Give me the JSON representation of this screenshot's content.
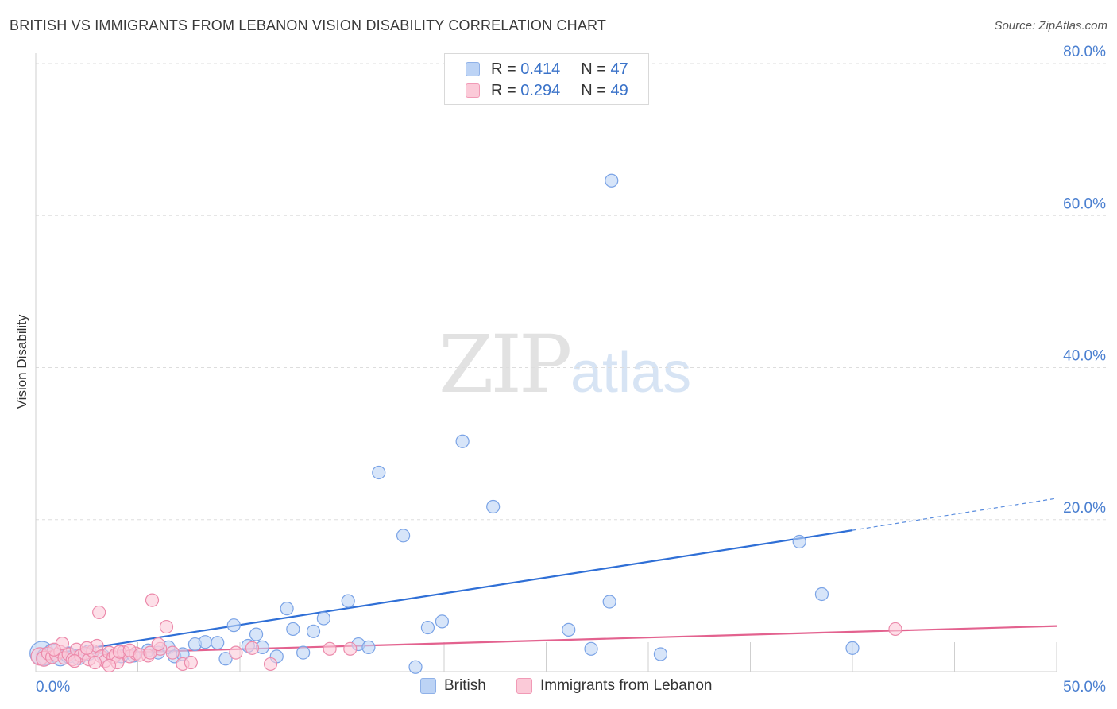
{
  "header": {
    "title": "BRITISH VS IMMIGRANTS FROM LEBANON VISION DISABILITY CORRELATION CHART",
    "source": "Source: ZipAtlas.com"
  },
  "watermark": {
    "zip": "ZIP",
    "atlas": "atlas"
  },
  "legend": {
    "rows": [
      {
        "r_label": "R =",
        "r_value": "0.414",
        "n_label": "N =",
        "n_value": "47"
      },
      {
        "r_label": "R =",
        "r_value": "0.294",
        "n_label": "N =",
        "n_value": "49"
      }
    ]
  },
  "bottom_legend": {
    "british": "British",
    "lebanon": "Immigrants from Lebanon"
  },
  "colors": {
    "blue_fill": "#bcd3f5",
    "blue_stroke": "#7aa3e6",
    "blue_line": "#2f6fd6",
    "pink_fill": "#fbcad8",
    "pink_stroke": "#ec8aab",
    "pink_line": "#e3628f",
    "tick_text": "#4a7fd0",
    "grid": "#dddddd"
  },
  "chart_data": {
    "type": "scatter",
    "title": "BRITISH VS IMMIGRANTS FROM LEBANON VISION DISABILITY CORRELATION CHART",
    "xlabel": "",
    "ylabel": "Vision Disability",
    "xlim": [
      0,
      50
    ],
    "ylim": [
      0,
      80
    ],
    "x_tick_labels": [
      {
        "value": 0,
        "label": "0.0%"
      },
      {
        "value": 50,
        "label": "50.0%"
      }
    ],
    "y_tick_labels": [
      {
        "value": 20,
        "label": "20.0%"
      },
      {
        "value": 40,
        "label": "40.0%"
      },
      {
        "value": 60,
        "label": "60.0%"
      },
      {
        "value": 80,
        "label": "80.0%"
      }
    ],
    "series": [
      {
        "name": "British",
        "r": 0.414,
        "n": 47,
        "trend": {
          "x0": 0,
          "y0": 2.0,
          "x1": 40.0,
          "y1": 18.6,
          "dash_x1": 50,
          "dash_y1": 22.8
        },
        "points": [
          [
            0.3,
            2.4,
            22
          ],
          [
            0.5,
            2.0,
            14
          ],
          [
            0.8,
            2.6,
            12
          ],
          [
            1.2,
            1.8,
            12
          ],
          [
            1.6,
            2.2,
            12
          ],
          [
            2.1,
            1.9,
            11
          ],
          [
            2.6,
            2.5,
            11
          ],
          [
            3.3,
            2.1,
            10
          ],
          [
            4.2,
            2.0,
            10
          ],
          [
            4.8,
            2.1,
            10
          ],
          [
            5.5,
            2.8,
            10
          ],
          [
            6.0,
            2.5,
            10
          ],
          [
            6.5,
            3.2,
            10
          ],
          [
            6.8,
            2.0,
            10
          ],
          [
            7.2,
            2.3,
            10
          ],
          [
            7.8,
            3.6,
            10
          ],
          [
            8.3,
            3.9,
            10
          ],
          [
            8.9,
            3.8,
            10
          ],
          [
            9.3,
            1.7,
            10
          ],
          [
            9.7,
            6.1,
            10
          ],
          [
            10.4,
            3.4,
            10
          ],
          [
            10.8,
            4.9,
            10
          ],
          [
            11.1,
            3.2,
            10
          ],
          [
            11.8,
            2.0,
            10
          ],
          [
            12.3,
            8.3,
            10
          ],
          [
            12.6,
            5.6,
            10
          ],
          [
            13.1,
            2.5,
            10
          ],
          [
            13.6,
            5.3,
            10
          ],
          [
            14.1,
            7.0,
            10
          ],
          [
            15.3,
            9.3,
            10
          ],
          [
            15.8,
            3.6,
            10
          ],
          [
            16.3,
            3.2,
            10
          ],
          [
            16.8,
            26.2,
            10
          ],
          [
            18.0,
            17.9,
            10
          ],
          [
            18.6,
            0.6,
            10
          ],
          [
            19.2,
            5.8,
            10
          ],
          [
            19.9,
            6.6,
            10
          ],
          [
            20.9,
            30.3,
            10
          ],
          [
            22.4,
            21.7,
            10
          ],
          [
            26.1,
            5.5,
            10
          ],
          [
            27.2,
            3.0,
            10
          ],
          [
            28.1,
            9.2,
            10
          ],
          [
            28.2,
            64.6,
            10
          ],
          [
            30.6,
            2.3,
            10
          ],
          [
            37.4,
            17.1,
            10
          ],
          [
            38.5,
            10.2,
            10
          ],
          [
            40.0,
            3.1,
            10
          ]
        ]
      },
      {
        "name": "Immigrants from Lebanon",
        "r": 0.294,
        "n": 49,
        "trend": {
          "x0": 0,
          "y0": 2.2,
          "x1": 50,
          "y1": 6.0
        },
        "points": [
          [
            0.2,
            2.0,
            14
          ],
          [
            0.4,
            1.7,
            11
          ],
          [
            0.6,
            2.4,
            10
          ],
          [
            0.8,
            1.9,
            10
          ],
          [
            1.0,
            2.2,
            10
          ],
          [
            1.2,
            2.6,
            10
          ],
          [
            1.4,
            1.8,
            10
          ],
          [
            1.6,
            2.3,
            10
          ],
          [
            1.8,
            1.6,
            10
          ],
          [
            2.0,
            2.9,
            10
          ],
          [
            2.2,
            2.1,
            10
          ],
          [
            2.4,
            2.4,
            10
          ],
          [
            2.6,
            1.6,
            10
          ],
          [
            2.8,
            2.7,
            10
          ],
          [
            3.0,
            3.4,
            10
          ],
          [
            3.2,
            2.0,
            10
          ],
          [
            3.4,
            1.4,
            10
          ],
          [
            3.6,
            2.5,
            10
          ],
          [
            3.8,
            1.9,
            10
          ],
          [
            1.3,
            3.7,
            9
          ],
          [
            2.5,
            3.1,
            9
          ],
          [
            3.1,
            7.8,
            10
          ],
          [
            3.9,
            2.2,
            10
          ],
          [
            4.3,
            2.6,
            10
          ],
          [
            4.6,
            2.0,
            10
          ],
          [
            4.9,
            2.4,
            10
          ],
          [
            5.5,
            2.1,
            10
          ],
          [
            6.1,
            3.0,
            10
          ],
          [
            4.0,
            1.2,
            9
          ],
          [
            3.6,
            0.8,
            9
          ],
          [
            4.1,
            2.6,
            9
          ],
          [
            4.6,
            2.8,
            9
          ],
          [
            5.1,
            2.2,
            9
          ],
          [
            5.6,
            2.5,
            9
          ],
          [
            5.7,
            9.4,
            10
          ],
          [
            6.0,
            3.6,
            10
          ],
          [
            6.4,
            5.9,
            10
          ],
          [
            6.7,
            2.5,
            10
          ],
          [
            7.2,
            1.0,
            10
          ],
          [
            7.6,
            1.2,
            10
          ],
          [
            9.8,
            2.5,
            10
          ],
          [
            10.6,
            3.1,
            10
          ],
          [
            11.5,
            1.0,
            10
          ],
          [
            14.4,
            3.0,
            10
          ],
          [
            15.4,
            3.0,
            10
          ],
          [
            42.1,
            5.6,
            10
          ],
          [
            2.9,
            1.2,
            9
          ],
          [
            1.9,
            1.4,
            9
          ],
          [
            0.9,
            2.9,
            9
          ]
        ]
      }
    ]
  }
}
